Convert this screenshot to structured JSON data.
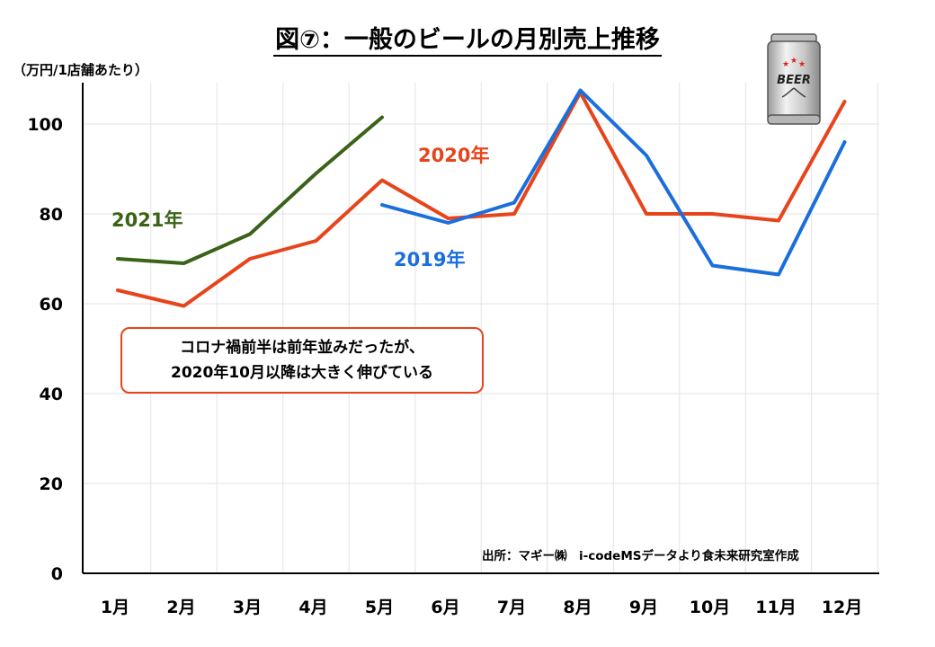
{
  "title": "図⑦：一般のビールの月別売上推移",
  "unit_label": "（万円/1店舗あたり）",
  "source": "出所：マギー㈱　i-codeMSデータより食未来研究室作成",
  "callout": {
    "line1": "コロナ禍前半は前年並みだったが、",
    "line2": "2020年10月以降は大きく伸びている"
  },
  "beer_icon_text": "BEER",
  "chart_data": {
    "type": "line",
    "categories": [
      "1月",
      "2月",
      "3月",
      "4月",
      "5月",
      "6月",
      "7月",
      "8月",
      "9月",
      "10月",
      "11月",
      "12月"
    ],
    "ylim": [
      0,
      110
    ],
    "yticks": [
      0,
      20,
      40,
      60,
      80,
      100
    ],
    "grid": true,
    "series": [
      {
        "name": "2021年",
        "color": "#3a6318",
        "values": [
          70,
          69,
          75.5,
          89,
          101.5,
          null,
          null,
          null,
          null,
          null,
          null,
          null
        ]
      },
      {
        "name": "2020年",
        "color": "#e8441b",
        "values": [
          63,
          59.5,
          70,
          74,
          87.5,
          79,
          80,
          107,
          80,
          80,
          78.5,
          105
        ]
      },
      {
        "name": "2019年",
        "color": "#1a6fdc",
        "values": [
          null,
          null,
          null,
          null,
          82,
          78,
          82.5,
          107.5,
          93,
          68.5,
          66.5,
          96
        ]
      }
    ]
  }
}
